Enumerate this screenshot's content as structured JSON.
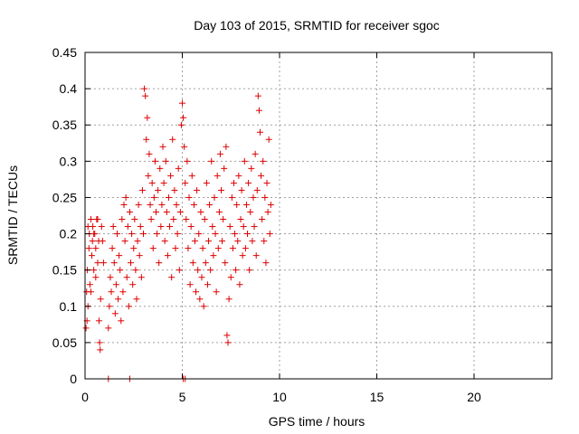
{
  "chart_data": {
    "type": "scatter",
    "title": "Day 103 of 2015, SRMTID for receiver sgoc",
    "xlabel": "GPS time / hours",
    "ylabel": "SRMTID / TECUs",
    "xlim": [
      0,
      24
    ],
    "ylim": [
      0,
      0.45
    ],
    "xticks": [
      0,
      5,
      10,
      15,
      20
    ],
    "xtick_labels": [
      "0",
      "5",
      "10",
      "15",
      "20"
    ],
    "yticks": [
      0,
      0.05,
      0.1,
      0.15,
      0.2,
      0.25,
      0.3,
      0.35,
      0.4,
      0.45
    ],
    "ytick_labels": [
      "0",
      "0.05",
      "0.1",
      "0.15",
      "0.2",
      "0.25",
      "0.3",
      "0.35",
      "0.4",
      "0.45"
    ],
    "grid": true,
    "marker": "+",
    "marker_color": "#dd0000",
    "series": [
      {
        "name": "SRMTID",
        "points": [
          [
            0.05,
            0.07
          ],
          [
            0.1,
            0.08
          ],
          [
            0.08,
            0.12
          ],
          [
            0.12,
            0.15
          ],
          [
            0.15,
            0.21
          ],
          [
            0.2,
            0.18
          ],
          [
            0.22,
            0.2
          ],
          [
            0.25,
            0.13
          ],
          [
            0.3,
            0.22
          ],
          [
            0.35,
            0.17
          ],
          [
            0.38,
            0.19
          ],
          [
            0.4,
            0.21
          ],
          [
            0.45,
            0.15
          ],
          [
            0.5,
            0.2
          ],
          [
            0.55,
            0.18
          ],
          [
            0.6,
            0.22
          ],
          [
            0.65,
            0.16
          ],
          [
            0.7,
            0.19
          ],
          [
            0.72,
            0.08
          ],
          [
            0.75,
            0.05
          ],
          [
            0.78,
            0.04
          ],
          [
            0.8,
            0.11
          ],
          [
            0.85,
            0.21
          ],
          [
            0.9,
            0.19
          ],
          [
            0.95,
            0.16
          ],
          [
            0.15,
            0.1
          ],
          [
            0.3,
            0.12
          ],
          [
            0.45,
            0.2
          ],
          [
            0.55,
            0.14
          ],
          [
            0.65,
            0.22
          ],
          [
            1.2,
            0.07
          ],
          [
            1.25,
            0.1
          ],
          [
            1.3,
            0.14
          ],
          [
            1.35,
            0.12
          ],
          [
            1.4,
            0.18
          ],
          [
            1.45,
            0.21
          ],
          [
            1.5,
            0.16
          ],
          [
            1.55,
            0.09
          ],
          [
            1.6,
            0.13
          ],
          [
            1.65,
            0.2
          ],
          [
            1.7,
            0.11
          ],
          [
            1.75,
            0.17
          ],
          [
            1.8,
            0.15
          ],
          [
            1.85,
            0.08
          ],
          [
            1.9,
            0.22
          ],
          [
            1.95,
            0.12
          ],
          [
            2.0,
            0.24
          ],
          [
            2.05,
            0.19
          ],
          [
            2.1,
            0.25
          ],
          [
            2.15,
            0.14
          ],
          [
            2.2,
            0.21
          ],
          [
            2.25,
            0.1
          ],
          [
            2.3,
            0.23
          ],
          [
            2.35,
            0.16
          ],
          [
            2.4,
            0.2
          ],
          [
            2.45,
            0.13
          ],
          [
            2.5,
            0.18
          ],
          [
            2.55,
            0.22
          ],
          [
            2.6,
            0.15
          ],
          [
            2.65,
            0.11
          ],
          [
            2.7,
            0.19
          ],
          [
            2.75,
            0.24
          ],
          [
            2.8,
            0.17
          ],
          [
            2.85,
            0.21
          ],
          [
            2.9,
            0.14
          ],
          [
            2.95,
            0.26
          ],
          [
            3.0,
            0.2
          ],
          [
            3.05,
            0.4
          ],
          [
            3.1,
            0.39
          ],
          [
            3.15,
            0.33
          ],
          [
            3.2,
            0.36
          ],
          [
            3.25,
            0.28
          ],
          [
            3.3,
            0.31
          ],
          [
            3.35,
            0.24
          ],
          [
            3.4,
            0.22
          ],
          [
            3.45,
            0.27
          ],
          [
            3.5,
            0.18
          ],
          [
            3.55,
            0.25
          ],
          [
            3.6,
            0.3
          ],
          [
            3.65,
            0.23
          ],
          [
            3.7,
            0.2
          ],
          [
            3.75,
            0.26
          ],
          [
            3.8,
            0.16
          ],
          [
            3.85,
            0.29
          ],
          [
            3.9,
            0.21
          ],
          [
            3.95,
            0.24
          ],
          [
            4.0,
            0.32
          ],
          [
            4.05,
            0.27
          ],
          [
            4.1,
            0.19
          ],
          [
            4.15,
            0.3
          ],
          [
            4.2,
            0.23
          ],
          [
            4.25,
            0.17
          ],
          [
            4.3,
            0.25
          ],
          [
            4.35,
            0.21
          ],
          [
            4.4,
            0.28
          ],
          [
            4.45,
            0.14
          ],
          [
            4.5,
            0.33
          ],
          [
            4.55,
            0.22
          ],
          [
            4.6,
            0.26
          ],
          [
            4.65,
            0.18
          ],
          [
            4.7,
            0.24
          ],
          [
            4.75,
            0.2
          ],
          [
            4.8,
            0.29
          ],
          [
            4.85,
            0.15
          ],
          [
            4.9,
            0.23
          ],
          [
            4.95,
            0.35
          ],
          [
            5.0,
            0.38
          ],
          [
            5.05,
            0.36
          ],
          [
            5.1,
            0.32
          ],
          [
            5.15,
            0.27
          ],
          [
            5.2,
            0.22
          ],
          [
            5.25,
            0.3
          ],
          [
            5.3,
            0.18
          ],
          [
            5.35,
            0.25
          ],
          [
            5.4,
            0.13
          ],
          [
            5.45,
            0.21
          ],
          [
            5.5,
            0.28
          ],
          [
            5.55,
            0.16
          ],
          [
            5.6,
            0.24
          ],
          [
            5.65,
            0.19
          ],
          [
            5.7,
            0.12
          ],
          [
            5.75,
            0.26
          ],
          [
            5.8,
            0.15
          ],
          [
            5.85,
            0.2
          ],
          [
            5.9,
            0.11
          ],
          [
            5.95,
            0.23
          ],
          [
            6.0,
            0.14
          ],
          [
            6.05,
            0.18
          ],
          [
            6.1,
            0.1
          ],
          [
            6.15,
            0.22
          ],
          [
            6.2,
            0.16
          ],
          [
            6.25,
            0.27
          ],
          [
            6.3,
            0.13
          ],
          [
            6.35,
            0.19
          ],
          [
            6.4,
            0.24
          ],
          [
            6.45,
            0.15
          ],
          [
            6.5,
            0.3
          ],
          [
            6.55,
            0.21
          ],
          [
            6.6,
            0.17
          ],
          [
            6.65,
            0.25
          ],
          [
            6.7,
            0.2
          ],
          [
            6.75,
            0.12
          ],
          [
            6.8,
            0.28
          ],
          [
            6.85,
            0.18
          ],
          [
            6.9,
            0.23
          ],
          [
            6.95,
            0.31
          ],
          [
            7.0,
            0.26
          ],
          [
            7.05,
            0.19
          ],
          [
            7.1,
            0.22
          ],
          [
            7.15,
            0.29
          ],
          [
            7.2,
            0.16
          ],
          [
            7.25,
            0.32
          ],
          [
            7.3,
            0.06
          ],
          [
            7.35,
            0.05
          ],
          [
            7.4,
            0.11
          ],
          [
            7.45,
            0.21
          ],
          [
            7.5,
            0.14
          ],
          [
            7.55,
            0.25
          ],
          [
            7.6,
            0.18
          ],
          [
            7.65,
            0.27
          ],
          [
            7.7,
            0.2
          ],
          [
            7.75,
            0.15
          ],
          [
            7.8,
            0.24
          ],
          [
            7.85,
            0.19
          ],
          [
            7.9,
            0.28
          ],
          [
            7.95,
            0.13
          ],
          [
            8.0,
            0.22
          ],
          [
            8.05,
            0.26
          ],
          [
            8.1,
            0.17
          ],
          [
            8.15,
            0.21
          ],
          [
            8.2,
            0.3
          ],
          [
            8.25,
            0.18
          ],
          [
            8.3,
            0.24
          ],
          [
            8.35,
            0.2
          ],
          [
            8.4,
            0.27
          ],
          [
            8.45,
            0.15
          ],
          [
            8.5,
            0.23
          ],
          [
            8.55,
            0.29
          ],
          [
            8.6,
            0.19
          ],
          [
            8.65,
            0.25
          ],
          [
            8.7,
            0.21
          ],
          [
            8.75,
            0.31
          ],
          [
            8.8,
            0.17
          ],
          [
            8.85,
            0.26
          ],
          [
            8.9,
            0.39
          ],
          [
            8.95,
            0.37
          ],
          [
            9.0,
            0.34
          ],
          [
            9.05,
            0.28
          ],
          [
            9.1,
            0.22
          ],
          [
            9.15,
            0.3
          ],
          [
            9.2,
            0.19
          ],
          [
            9.25,
            0.25
          ],
          [
            9.3,
            0.16
          ],
          [
            9.35,
            0.27
          ],
          [
            9.4,
            0.23
          ],
          [
            9.45,
            0.33
          ],
          [
            9.5,
            0.2
          ],
          [
            9.55,
            0.24
          ],
          [
            1.2,
            0.0
          ],
          [
            2.3,
            0.0
          ],
          [
            5.05,
            0.0
          ],
          [
            5.15,
            0.0
          ]
        ]
      }
    ]
  }
}
